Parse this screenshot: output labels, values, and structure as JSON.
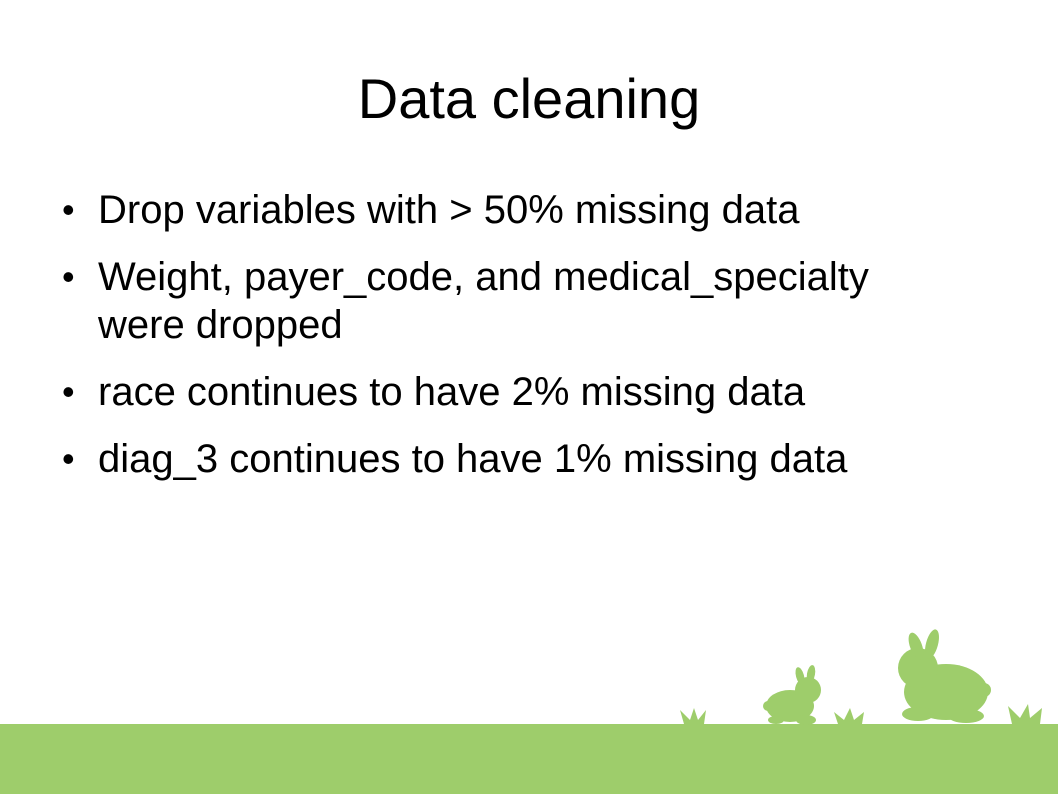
{
  "slide": {
    "title": "Data cleaning",
    "bullets": [
      "Drop variables with > 50% missing data",
      "Weight, payer_code, and medical_specialty were dropped",
      "race continues to have 2% missing data",
      "diag_3 continues to have 1% missing data"
    ],
    "bullet_glyph": "•"
  },
  "theme": {
    "grass_color": "#9ecd6b",
    "text_color": "#000000",
    "background": "#ffffff",
    "decoration_icons": [
      "grass-tuft-icon",
      "small-rabbit-icon",
      "large-rabbit-icon"
    ]
  }
}
